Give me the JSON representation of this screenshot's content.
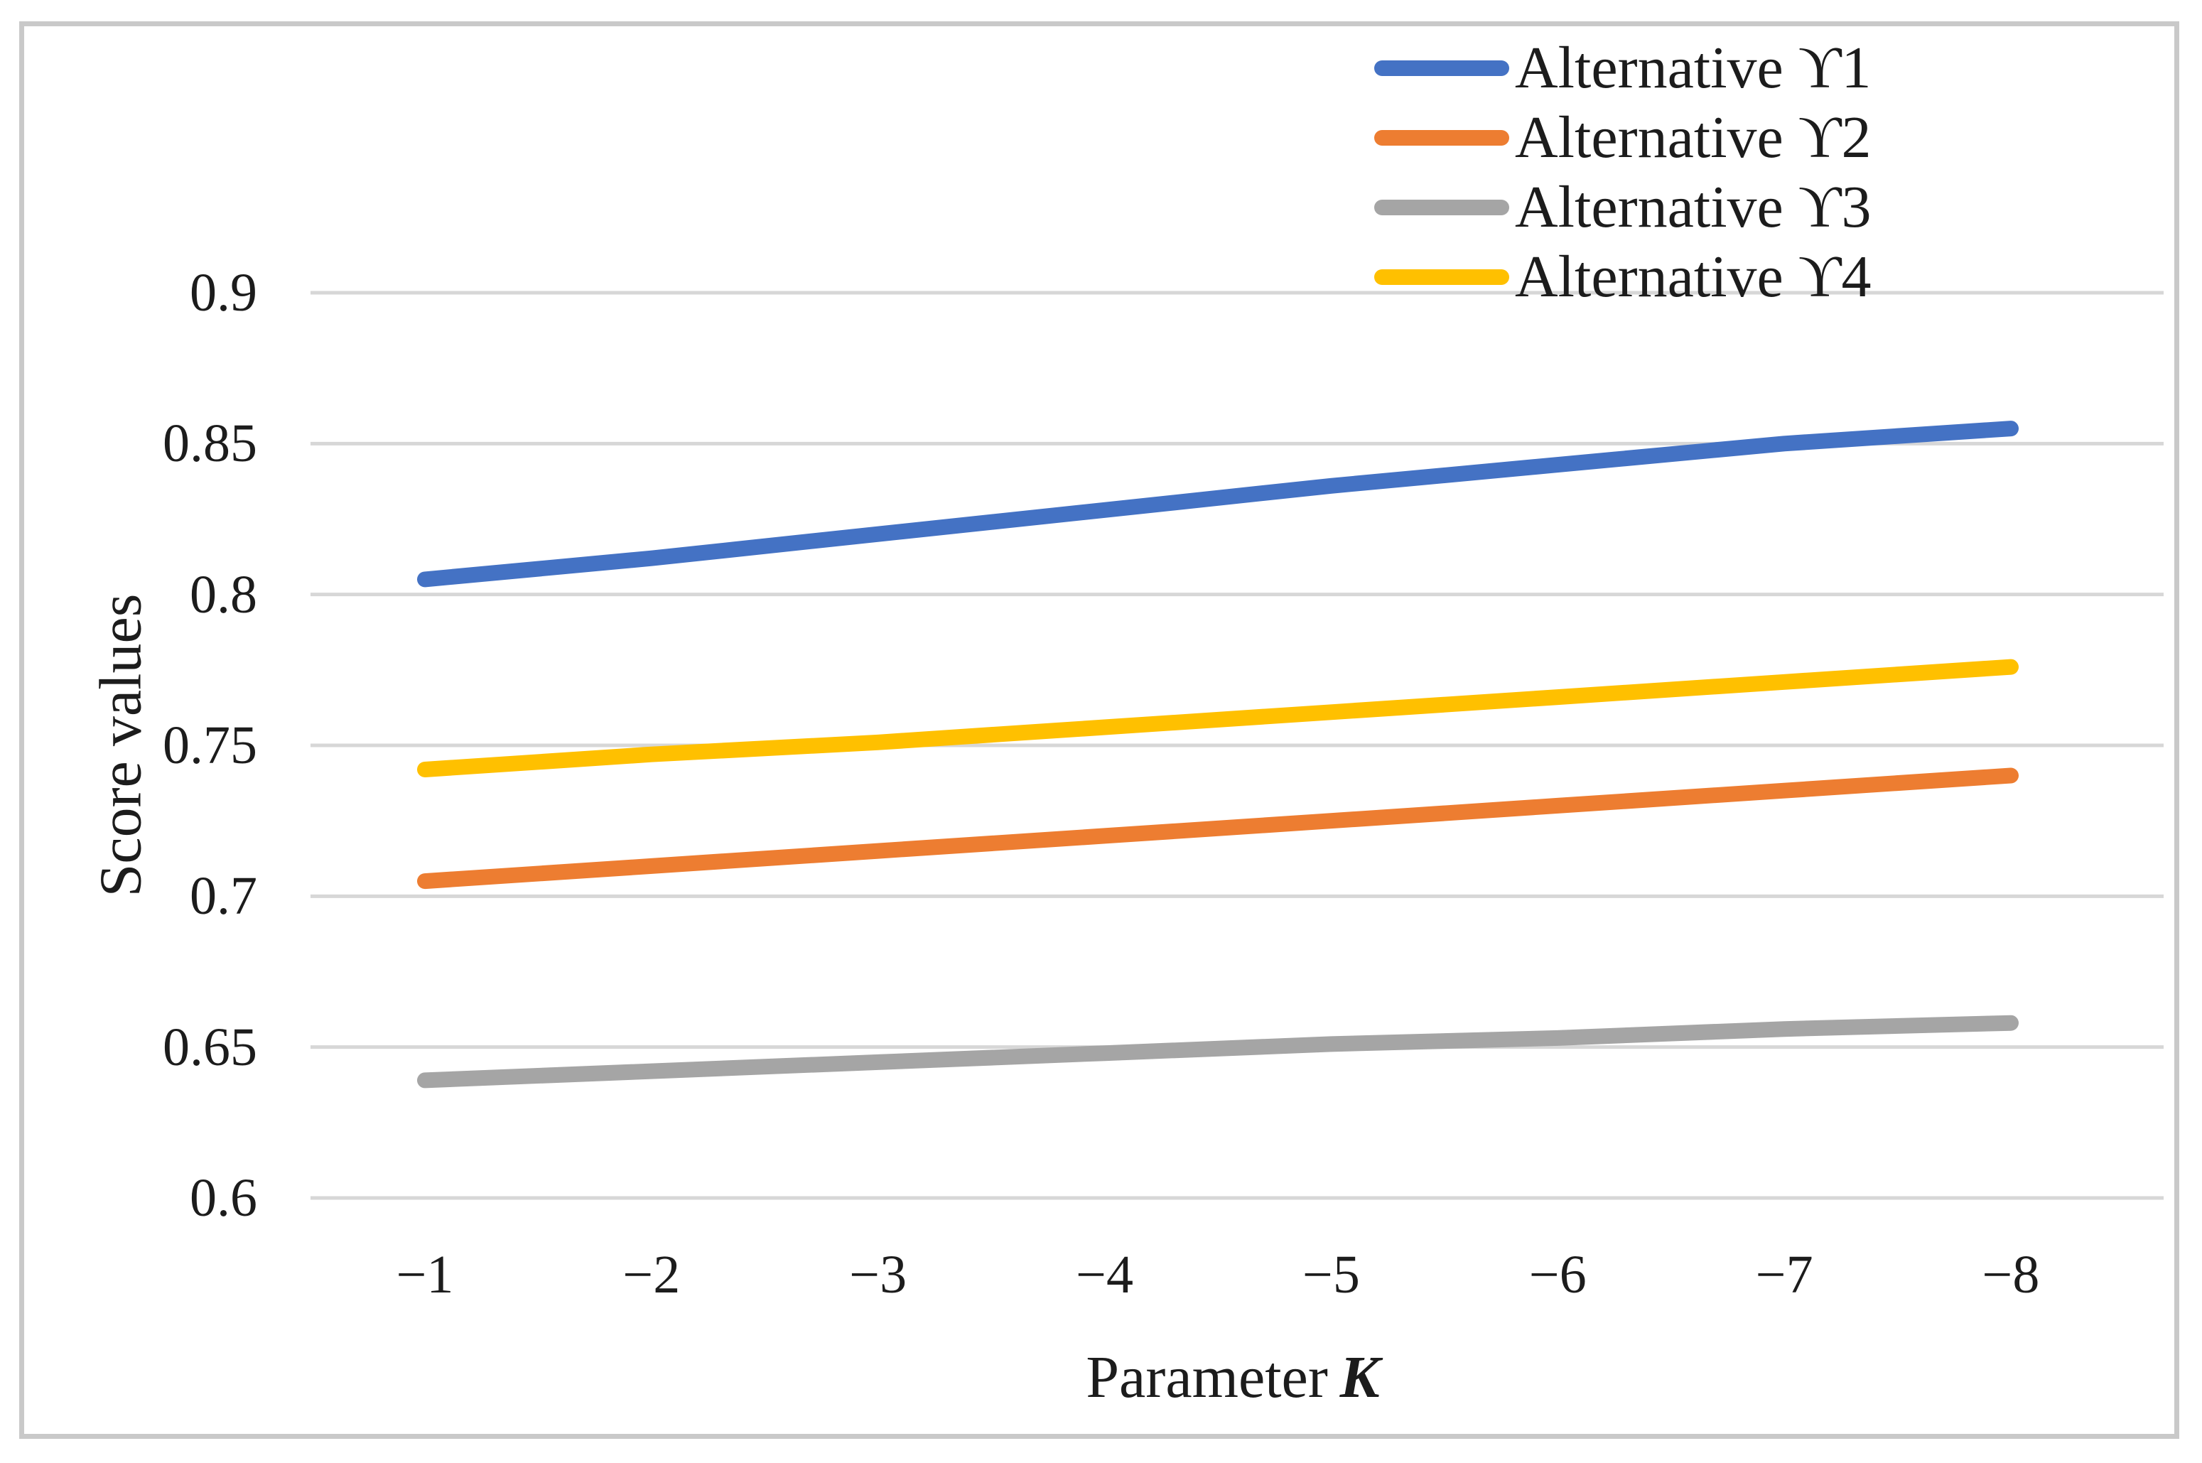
{
  "chart_data": {
    "type": "line",
    "title": "",
    "xlabel": "Parameter K",
    "xlabel_prefix": "Parameter",
    "xlabel_variable": "K",
    "ylabel": "Score values",
    "x": [
      -1,
      -2,
      -3,
      -4,
      -5,
      -6,
      -7,
      -8
    ],
    "x_tick_labels": [
      "−1",
      "−2",
      "−3",
      "−4",
      "−5",
      "−6",
      "−7",
      "−8"
    ],
    "ylim": [
      0.6,
      0.9
    ],
    "y_ticks": [
      0.9,
      0.85,
      0.8,
      0.75,
      0.7,
      0.65,
      0.6
    ],
    "y_tick_labels": [
      "0.9",
      "0.85",
      "0.8",
      "0.75",
      "0.7",
      "0.65",
      "0.6"
    ],
    "grid": "horizontal",
    "legend_position": "top-right",
    "colors": {
      "grid": "#d7d7d7",
      "frame": "#c9c9c9",
      "text": "#1c1c1c"
    },
    "series": [
      {
        "name": "Alternative ϒ1",
        "color": "#4472C4",
        "values": [
          0.805,
          0.812,
          0.82,
          0.828,
          0.836,
          0.843,
          0.85,
          0.855
        ]
      },
      {
        "name": "Alternative ϒ2",
        "color": "#ED7D31",
        "values": [
          0.705,
          0.71,
          0.715,
          0.72,
          0.725,
          0.73,
          0.735,
          0.74
        ]
      },
      {
        "name": "Alternative ϒ3",
        "color": "#A5A5A5",
        "values": [
          0.639,
          0.642,
          0.645,
          0.648,
          0.651,
          0.653,
          0.656,
          0.658
        ]
      },
      {
        "name": "Alternative ϒ4",
        "color": "#FFC000",
        "values": [
          0.742,
          0.747,
          0.751,
          0.756,
          0.761,
          0.766,
          0.771,
          0.776
        ]
      }
    ]
  }
}
